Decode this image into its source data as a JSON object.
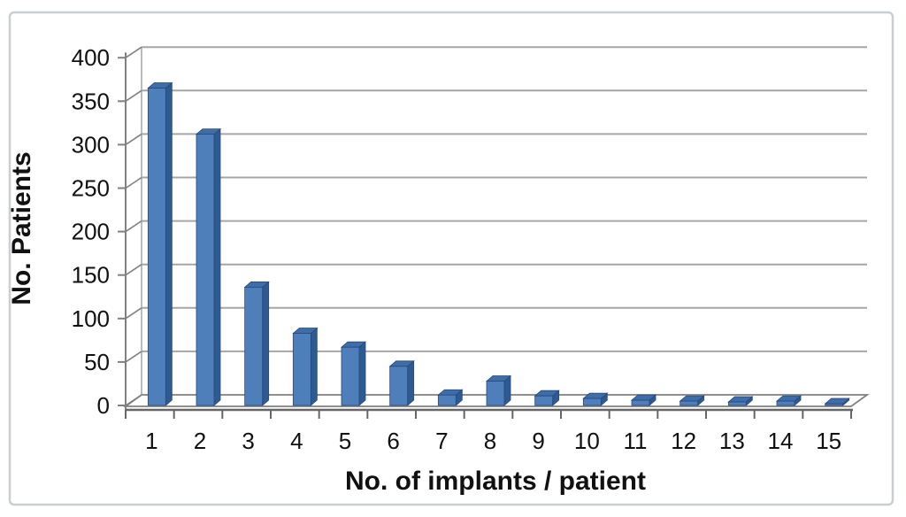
{
  "chart_data": {
    "type": "bar",
    "style": "3d-column",
    "title": "",
    "xlabel": "No. of implants / patient",
    "ylabel": "No. Patients",
    "categories": [
      "1",
      "2",
      "3",
      "4",
      "5",
      "6",
      "7",
      "8",
      "9",
      "10",
      "11",
      "12",
      "13",
      "14",
      "15"
    ],
    "values": [
      365,
      312,
      136,
      83,
      67,
      45,
      12,
      28,
      11,
      8,
      6,
      5,
      4,
      5,
      2
    ],
    "ylim": [
      0,
      400
    ],
    "yticks": [
      0,
      50,
      100,
      150,
      200,
      250,
      300,
      350,
      400
    ],
    "grid": true,
    "legend": "none",
    "series_name": "No. Patients"
  },
  "colors": {
    "bar_front": "#4e7fba",
    "bar_side": "#2e5a92",
    "bar_top": "#3e6da7",
    "bar_outline": "#27497b",
    "gridline": "#a6a6a6",
    "axis": "#808080",
    "axis_dark": "#666666",
    "text": "#111111",
    "figure_border": "#c9ced3",
    "background": "#ffffff"
  }
}
